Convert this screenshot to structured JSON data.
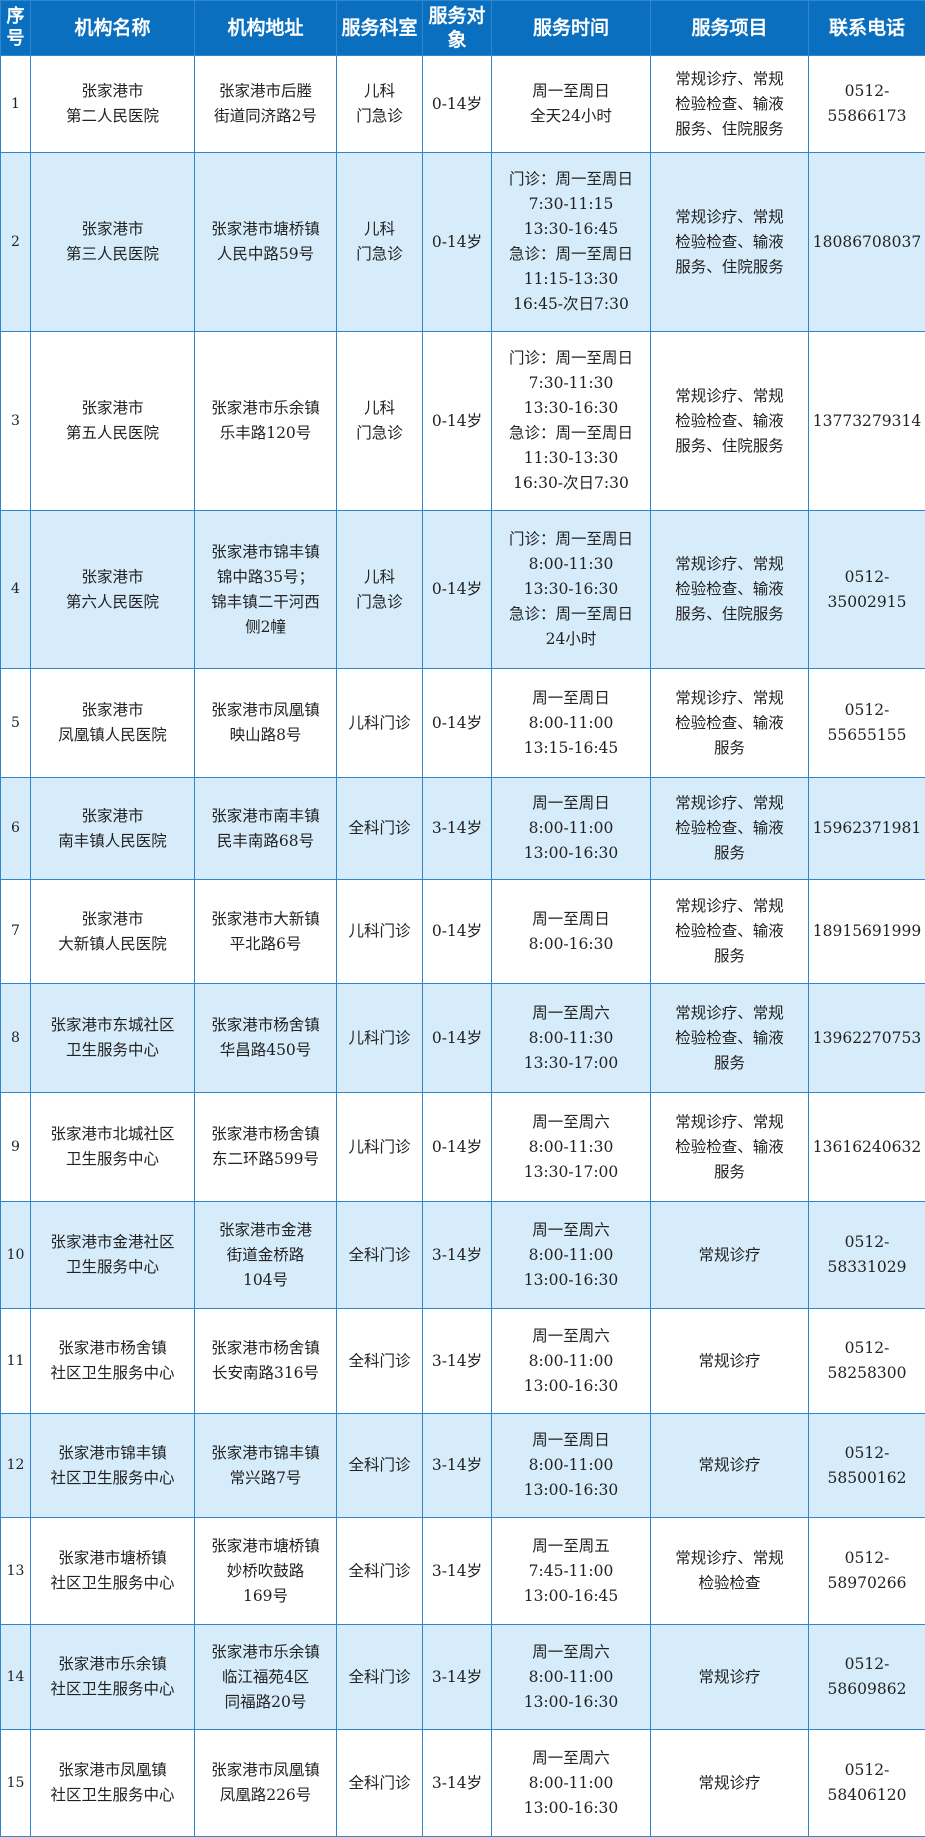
{
  "header": [
    "序号",
    "机构名称",
    "机构地址",
    "服务科室",
    "服务对象",
    "服务时间",
    "服务项目",
    "联系电话"
  ],
  "rows": [
    [
      "1",
      "张家港市\n第二人民医院",
      "张家港市后塍\n街道同济路2号",
      "儿科\n门急诊",
      "0-14岁",
      "周一至周日\n全天24小时",
      "常规诊疗、常规\n检验检查、输液\n服务、住院服务",
      "0512-\n55866173"
    ],
    [
      "2",
      "张家港市\n第三人民医院",
      "张家港市塘桥镇\n人民中路59号",
      "儿科\n门急诊",
      "0-14岁",
      "门诊：周一至周日\n7:30-11:15\n13:30-16:45\n急诊：周一至周日\n11:15-13:30\n16:45-次日7:30",
      "常规诊疗、常规\n检验检查、输液\n服务、住院服务",
      "18086708037"
    ],
    [
      "3",
      "张家港市\n第五人民医院",
      "张家港市乐余镇\n乐丰路120号",
      "儿科\n门急诊",
      "0-14岁",
      "门诊：周一至周日\n7:30-11:30\n13:30-16:30\n急诊：周一至周日\n11:30-13:30\n16:30-次日7:30",
      "常规诊疗、常规\n检验检查、输液\n服务、住院服务",
      "13773279314"
    ],
    [
      "4",
      "张家港市\n第六人民医院",
      "张家港市锦丰镇\n锦中路35号；\n锦丰镇二干河西\n侧2幢",
      "儿科\n门急诊",
      "0-14岁",
      "门诊：周一至周日\n8:00-11:30\n13:30-16:30\n急诊：周一至周日\n24小时",
      "常规诊疗、常规\n检验检查、输液\n服务、住院服务",
      "0512-\n35002915"
    ],
    [
      "5",
      "张家港市\n凤凰镇人民医院",
      "张家港市凤凰镇\n映山路8号",
      "儿科门诊",
      "0-14岁",
      "周一至周日\n8:00-11:00\n13:15-16:45",
      "常规诊疗、常规\n检验检查、输液\n服务",
      "0512-\n55655155"
    ],
    [
      "6",
      "张家港市\n南丰镇人民医院",
      "张家港市南丰镇\n民丰南路68号",
      "全科门诊",
      "3-14岁",
      "周一至周日\n8:00-11:00\n13:00-16:30",
      "常规诊疗、常规\n检验检查、输液\n服务",
      "15962371981"
    ],
    [
      "7",
      "张家港市\n大新镇人民医院",
      "张家港市大新镇\n平北路6号",
      "儿科门诊",
      "0-14岁",
      "周一至周日\n8:00-16:30",
      "常规诊疗、常规\n检验检查、输液\n服务",
      "18915691999"
    ],
    [
      "8",
      "张家港市东城社区\n卫生服务中心",
      "张家港市杨舍镇\n华昌路450号",
      "儿科门诊",
      "0-14岁",
      "周一至周六\n8:00-11:30\n13:30-17:00",
      "常规诊疗、常规\n检验检查、输液\n服务",
      "13962270753"
    ],
    [
      "9",
      "张家港市北城社区\n卫生服务中心",
      "张家港市杨舍镇\n东二环路599号",
      "儿科门诊",
      "0-14岁",
      "周一至周六\n8:00-11:30\n13:30-17:00",
      "常规诊疗、常规\n检验检查、输液\n服务",
      "13616240632"
    ],
    [
      "10",
      "张家港市金港社区\n卫生服务中心",
      "张家港市金港\n街道金桥路\n104号",
      "全科门诊",
      "3-14岁",
      "周一至周六\n8:00-11:00\n13:00-16:30",
      "常规诊疗",
      "0512-\n58331029"
    ],
    [
      "11",
      "张家港市杨舍镇\n社区卫生服务中心",
      "张家港市杨舍镇\n长安南路316号",
      "全科门诊",
      "3-14岁",
      "周一至周六\n8:00-11:00\n13:00-16:30",
      "常规诊疗",
      "0512-\n58258300"
    ],
    [
      "12",
      "张家港市锦丰镇\n社区卫生服务中心",
      "张家港市锦丰镇\n常兴路7号",
      "全科门诊",
      "3-14岁",
      "周一至周日\n8:00-11:00\n13:00-16:30",
      "常规诊疗",
      "0512-\n58500162"
    ],
    [
      "13",
      "张家港市塘桥镇\n社区卫生服务中心",
      "张家港市塘桥镇\n妙桥吹鼓路\n169号",
      "全科门诊",
      "3-14岁",
      "周一至周五\n7:45-11:00\n13:00-16:45",
      "常规诊疗、常规\n检验检查",
      "0512-\n58970266"
    ],
    [
      "14",
      "张家港市乐余镇\n社区卫生服务中心",
      "张家港市乐余镇\n临江福苑4区\n同福路20号",
      "全科门诊",
      "3-14岁",
      "周一至周六\n8:00-11:00\n13:00-16:30",
      "常规诊疗",
      "0512-\n58609862"
    ],
    [
      "15",
      "张家港市凤凰镇\n社区卫生服务中心",
      "张家港市凤凰镇\n凤凰路226号",
      "全科门诊",
      "3-14岁",
      "周一至周六\n8:00-11:00\n13:00-16:30",
      "常规诊疗",
      "0512-\n58406120"
    ]
  ],
  "colors": {
    "header_bg": "#0a6fbf",
    "alt_row_bg": "#d7ecfb",
    "border": "#2f86cf"
  }
}
